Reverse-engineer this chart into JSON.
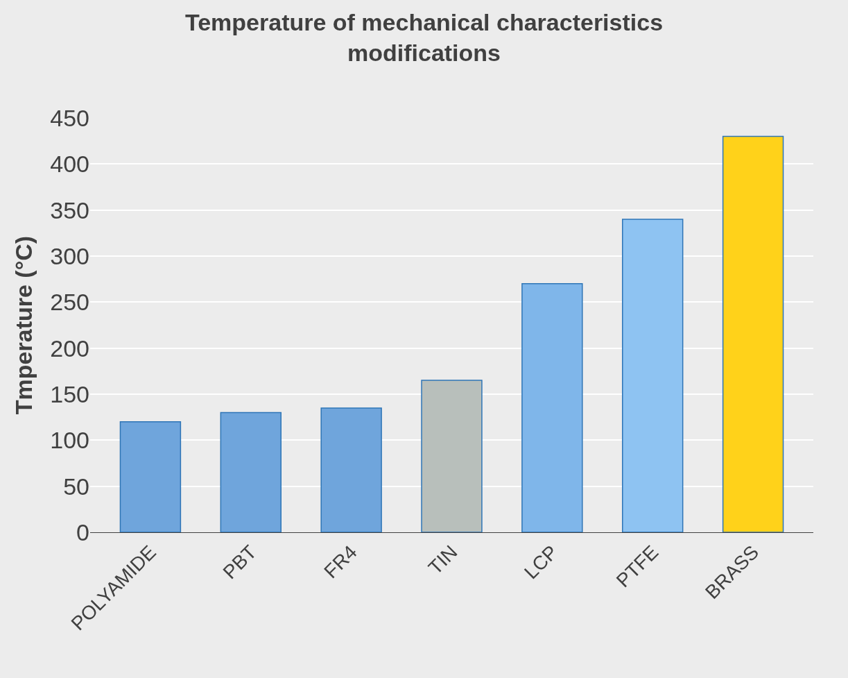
{
  "chart_data": {
    "type": "bar",
    "title": "Temperature of mechanical characteristics modifications",
    "ylabel": "Tmperature (°C)",
    "categories": [
      "POLYAMIDE",
      "PBT",
      "FR4",
      "TIN",
      "LCP",
      "PTFE",
      "BRASS"
    ],
    "values": [
      120,
      130,
      135,
      165,
      270,
      340,
      430
    ],
    "colors": [
      "#6fa5dc",
      "#6fa5dc",
      "#6fa5dc",
      "#b8bfbb",
      "#7fb6ea",
      "#8ec3f2",
      "#ffd21a"
    ],
    "ylim": [
      0,
      450
    ],
    "yticks": [
      0,
      50,
      100,
      150,
      200,
      250,
      300,
      350,
      400,
      450
    ],
    "grid": "y"
  }
}
